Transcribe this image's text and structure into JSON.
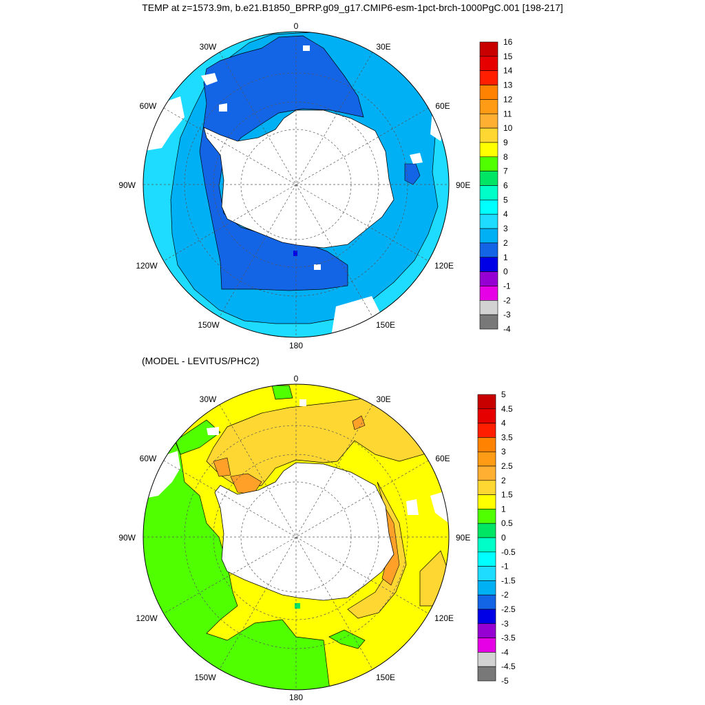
{
  "title": "TEMP at z=1573.9m, b.e21.B1850_BPRP.g09_g17.CMIP6-esm-1pct-brch-1000PgC.001 [198-217]",
  "subtitle": "(MODEL - LEVITUS/PHC2)",
  "longitude_labels": {
    "lon_0": "0",
    "lon_30e": "30E",
    "lon_60e": "60E",
    "lon_90e": "90E",
    "lon_120e": "120E",
    "lon_150e": "150E",
    "lon_180": "180",
    "lon_150w": "150W",
    "lon_120w": "120W",
    "lon_90w": "90W",
    "lon_60w": "60W",
    "lon_30w": "30W"
  },
  "colors": {
    "land": "#ffffff",
    "ocean_2_3": "#00b0f5",
    "ocean_3_4": "#1edcff",
    "ocean_1_2": "#1464e6",
    "ocean_0_1": "#0000e6",
    "diff_1_1_5": "#ffff00",
    "diff_1_5_2": "#ffd732",
    "diff_2_2_5": "#ffa028",
    "diff_0_5_1": "#50ff00",
    "diff_0_0_5": "#00e664"
  },
  "map_top": {
    "colorbar": {
      "labels": [
        "16",
        "15",
        "14",
        "13",
        "12",
        "11",
        "10",
        "9",
        "8",
        "7",
        "6",
        "5",
        "4",
        "3",
        "2",
        "1",
        "0",
        "-1",
        "-2",
        "-3",
        "-4"
      ],
      "colors": [
        "#c80000",
        "#e60000",
        "#ff1e00",
        "#ff8200",
        "#ff9b14",
        "#ffaf32",
        "#ffd732",
        "#ffff00",
        "#50ff00",
        "#00e664",
        "#00ffc8",
        "#00ffff",
        "#1edcff",
        "#00b0f5",
        "#1464e6",
        "#0000e6",
        "#9600d2",
        "#e600e6",
        "#d2d2d2",
        "#787878"
      ]
    }
  },
  "map_bottom": {
    "colorbar": {
      "labels": [
        "5",
        "4.5",
        "4",
        "3.5",
        "3",
        "2.5",
        "2",
        "1.5",
        "1",
        "0.5",
        "0",
        "-0.5",
        "-1",
        "-1.5",
        "-2",
        "-2.5",
        "-3",
        "-3.5",
        "-4",
        "-4.5",
        "-5"
      ],
      "colors": [
        "#c80000",
        "#e60000",
        "#ff1e00",
        "#ff8200",
        "#ff9b14",
        "#ffaf32",
        "#ffd732",
        "#ffff00",
        "#50ff00",
        "#00e664",
        "#00ffc8",
        "#00ffff",
        "#1edcff",
        "#00b0f5",
        "#1464e6",
        "#0000e6",
        "#9600d2",
        "#e600e6",
        "#d2d2d2",
        "#787878"
      ]
    }
  }
}
